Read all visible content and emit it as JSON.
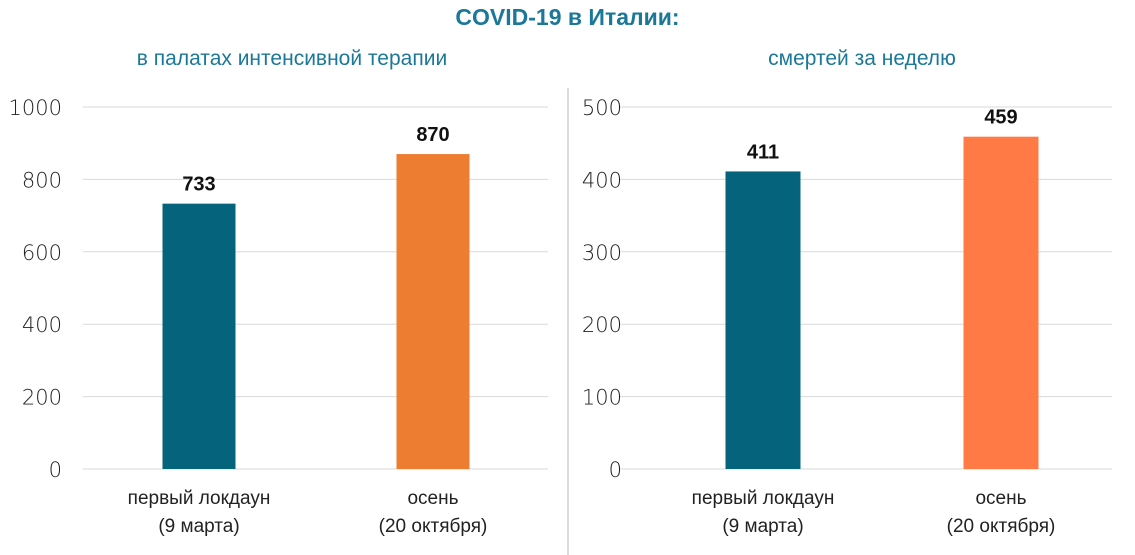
{
  "title": "COVID-19 в Италии:",
  "colors": {
    "title": "#1b7898",
    "teal": "#05637b",
    "orange_left": "#ed7d31",
    "orange_right": "#ff7a45",
    "grid": "#d9d9d9"
  },
  "chart_data": [
    {
      "type": "bar",
      "title": "в палатах интенсивной терапии",
      "categories": [
        [
          "первый локдаун",
          "(9 марта)"
        ],
        [
          "осень",
          "(20 октября)"
        ]
      ],
      "values": [
        733,
        870
      ],
      "value_labels": [
        "733",
        "870"
      ],
      "bar_colors": [
        "#05637b",
        "#ed7d31"
      ],
      "ylim": [
        0,
        1000
      ],
      "yticks": [
        0,
        200,
        400,
        600,
        800,
        1000
      ],
      "grid": true
    },
    {
      "type": "bar",
      "title": "смертей за неделю",
      "categories": [
        [
          "первый локдаун",
          "(9 марта)"
        ],
        [
          "осень",
          "(20 октября)"
        ]
      ],
      "values": [
        411,
        459
      ],
      "value_labels": [
        "411",
        "459"
      ],
      "bar_colors": [
        "#05637b",
        "#ff7a45"
      ],
      "ylim": [
        0,
        500
      ],
      "yticks": [
        0,
        100,
        200,
        300,
        400,
        500
      ],
      "grid": true
    }
  ]
}
